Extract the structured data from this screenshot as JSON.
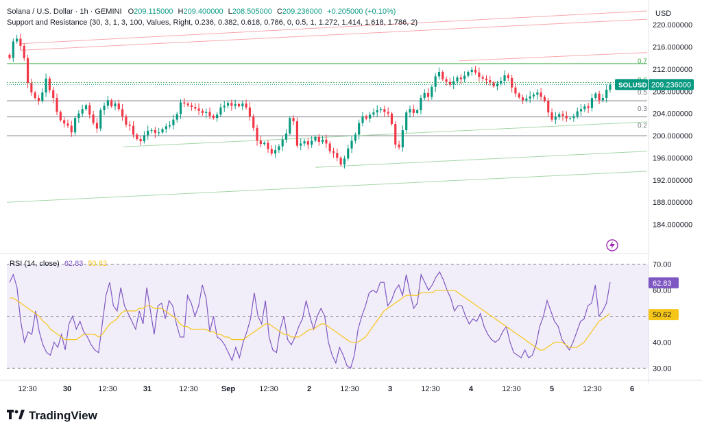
{
  "header": {
    "symbol": "Solana / U.S. Dollar · 1h · GEMINI",
    "o_label": "O",
    "o_value": "209.115000",
    "h_label": "H",
    "h_value": "209.400000",
    "l_label": "L",
    "l_value": "208.505000",
    "c_label": "C",
    "c_value": "209.236000",
    "change": "+0.205000 (+0.10%)",
    "indicator": "Support and Resistance (30, 3, 1, 3, 100, Values, Right, 0.236, 0.382, 0.618, 0.786, 0, 0.5, 1, 1.272, 1.414, 1.618, 1.786, 2)"
  },
  "currency": "USD",
  "rsi_legend": {
    "label": "RSI (14, close)",
    "rsi_value": "62.83",
    "ma_value": "50.62"
  },
  "footer": {
    "brand": "TradingView",
    "logo_icon": "tradingview-logo-icon"
  },
  "colors": {
    "up": "#089981",
    "down": "#f23645",
    "rsi": "#7e57c2",
    "rsi_ma": "#f5c518",
    "accent": "#2962ff"
  },
  "chart_data": [
    {
      "type": "candlestick",
      "title": "Solana / U.S. Dollar · 1h · GEMINI",
      "ylim": [
        180,
        222
      ],
      "y_ticks": [
        "220.000000",
        "216.000000",
        "212.000000",
        "208.000000",
        "204.000000",
        "200.000000",
        "196.000000",
        "192.000000",
        "188.000000",
        "184.000000"
      ],
      "y_tick_values": [
        220,
        216,
        212,
        208,
        204,
        200,
        196,
        192,
        188,
        184
      ],
      "x_ticks": [
        "12:30",
        "30",
        "12:30",
        "31",
        "12:30",
        "Sep",
        "12:30",
        "2",
        "12:30",
        "3",
        "12:30",
        "4",
        "12:30",
        "5",
        "12:30",
        "6"
      ],
      "last_price_label": "SOLUSD",
      "last_price": "209.236000",
      "level_labels": [
        "0.7",
        "0.6",
        "0.5",
        "0.3",
        "0.2"
      ],
      "closes": [
        214.0,
        217.0,
        217.5,
        216.2,
        214.0,
        209.5,
        207.8,
        206.8,
        206.3,
        207.8,
        210.3,
        208.2,
        206.8,
        204.3,
        202.8,
        202.2,
        201.8,
        200.6,
        203.2,
        204.0,
        204.8,
        205.5,
        203.8,
        202.3,
        201.3,
        204.6,
        205.4,
        206.4,
        205.3,
        205.8,
        204.8,
        203.5,
        202.0,
        201.8,
        200.2,
        199.4,
        199.0,
        200.1,
        200.9,
        201.0,
        200.5,
        200.6,
        201.2,
        201.7,
        201.9,
        202.9,
        203.9,
        206.0,
        205.8,
        205.5,
        205.2,
        204.9,
        204.5,
        204.1,
        204.3,
        203.6,
        203.2,
        203.8,
        205.1,
        205.4,
        205.9,
        205.4,
        205.7,
        205.3,
        205.8,
        205.1,
        203.5,
        201.4,
        199.1,
        198.5,
        198.7,
        197.6,
        196.8,
        197.4,
        198.1,
        199.3,
        200.4,
        203.2,
        202.6,
        198.2,
        198.6,
        199.0,
        198.4,
        199.1,
        199.8,
        198.9,
        199.3,
        198.6,
        197.2,
        196.9,
        196.0,
        194.8,
        195.9,
        197.7,
        199.1,
        200.2,
        202.3,
        203.5,
        203.1,
        203.8,
        204.2,
        204.6,
        204.8,
        204.3,
        204.0,
        202.1,
        198.4,
        197.9,
        201.0,
        204.2,
        204.8,
        204.1,
        204.6,
        206.8,
        207.7,
        207.0,
        208.8,
        210.7,
        211.5,
        210.2,
        209.7,
        209.2,
        209.8,
        210.5,
        210.2,
        210.8,
        211.5,
        211.9,
        211.4,
        210.6,
        210.3,
        210.0,
        209.6,
        208.9,
        209.4,
        209.9,
        210.9,
        210.4,
        208.7,
        207.6,
        206.9,
        206.4,
        206.7,
        207.1,
        207.4,
        207.8,
        207.0,
        206.3,
        204.2,
        202.9,
        203.4,
        203.9,
        203.6,
        203.1,
        203.2,
        203.5,
        204.4,
        204.8,
        205.3,
        205.0,
        206.8,
        207.6,
        206.4,
        206.8,
        208.3,
        209.2
      ]
    },
    {
      "type": "line",
      "title": "RSI (14, close)",
      "ylim": [
        28,
        72
      ],
      "y_ticks": [
        "70.00",
        "60.00",
        "50.00",
        "40.00",
        "30.00"
      ],
      "y_tick_values": [
        70,
        60,
        50,
        40,
        30
      ],
      "current_rsi_label": "62.83",
      "current_ma_label": "50.62",
      "series": [
        {
          "name": "RSI",
          "values": [
            63,
            66,
            61,
            48,
            40,
            44,
            43,
            52,
            44,
            39,
            36,
            35,
            40,
            38,
            43,
            37,
            47,
            50,
            45,
            48,
            44,
            42,
            39,
            37,
            36,
            47,
            58,
            63,
            54,
            52,
            61,
            54,
            51,
            48,
            45,
            52,
            47,
            61,
            52,
            43,
            54,
            55,
            49,
            56,
            54,
            47,
            42,
            42,
            58,
            55,
            50,
            54,
            62,
            57,
            44,
            50,
            42,
            41,
            39,
            36,
            33,
            38,
            34,
            40,
            44,
            49,
            59,
            50,
            47,
            56,
            42,
            37,
            36,
            45,
            50,
            41,
            39,
            42,
            46,
            49,
            56,
            50,
            45,
            50,
            53,
            50,
            40,
            35,
            32,
            38,
            35,
            31,
            30,
            35,
            45,
            50,
            54,
            59,
            60,
            59,
            63,
            63,
            54,
            56,
            60,
            62,
            58,
            66,
            59,
            53,
            55,
            66,
            63,
            60,
            62,
            65,
            67,
            64,
            60,
            57,
            52,
            54,
            54,
            50,
            47,
            49,
            48,
            51,
            46,
            43,
            41,
            40,
            41,
            44,
            46,
            40,
            36,
            35,
            34,
            37,
            34,
            35,
            39,
            46,
            50,
            56,
            52,
            48,
            46,
            41,
            39,
            37,
            40,
            44,
            48,
            49,
            54,
            55,
            62,
            50,
            52,
            55,
            63
          ]
        },
        {
          "name": "RSI-based MA",
          "values": [
            57,
            57,
            56,
            55,
            54,
            53,
            52,
            51,
            50,
            48,
            47,
            45,
            44,
            43,
            42,
            41,
            41,
            41,
            41,
            42,
            43,
            43,
            43,
            43,
            42,
            43,
            45,
            47,
            48,
            49,
            51,
            52,
            52,
            52,
            52,
            53,
            53,
            54,
            54,
            53,
            53,
            53,
            52,
            51,
            50,
            49,
            47,
            46,
            46,
            45,
            45,
            45,
            45,
            45,
            44,
            44,
            43,
            43,
            42,
            42,
            41,
            41,
            41,
            41,
            42,
            43,
            44,
            45,
            46,
            47,
            47,
            46,
            45,
            44,
            43,
            43,
            42,
            42,
            42,
            43,
            44,
            45,
            45,
            46,
            47,
            47,
            46,
            45,
            44,
            43,
            42,
            41,
            40,
            40,
            40,
            41,
            42,
            44,
            46,
            48,
            50,
            52,
            53,
            54,
            55,
            56,
            57,
            58,
            58,
            58,
            58,
            59,
            59,
            59,
            59,
            60,
            60,
            60,
            60,
            60,
            60,
            59,
            58,
            57,
            56,
            55,
            54,
            53,
            52,
            51,
            50,
            49,
            48,
            47,
            46,
            45,
            44,
            43,
            42,
            41,
            40,
            39,
            38,
            37,
            37,
            38,
            39,
            40,
            40,
            40,
            39,
            38,
            38,
            38,
            39,
            40,
            42,
            44,
            46,
            48,
            49,
            50,
            51
          ]
        }
      ]
    }
  ]
}
